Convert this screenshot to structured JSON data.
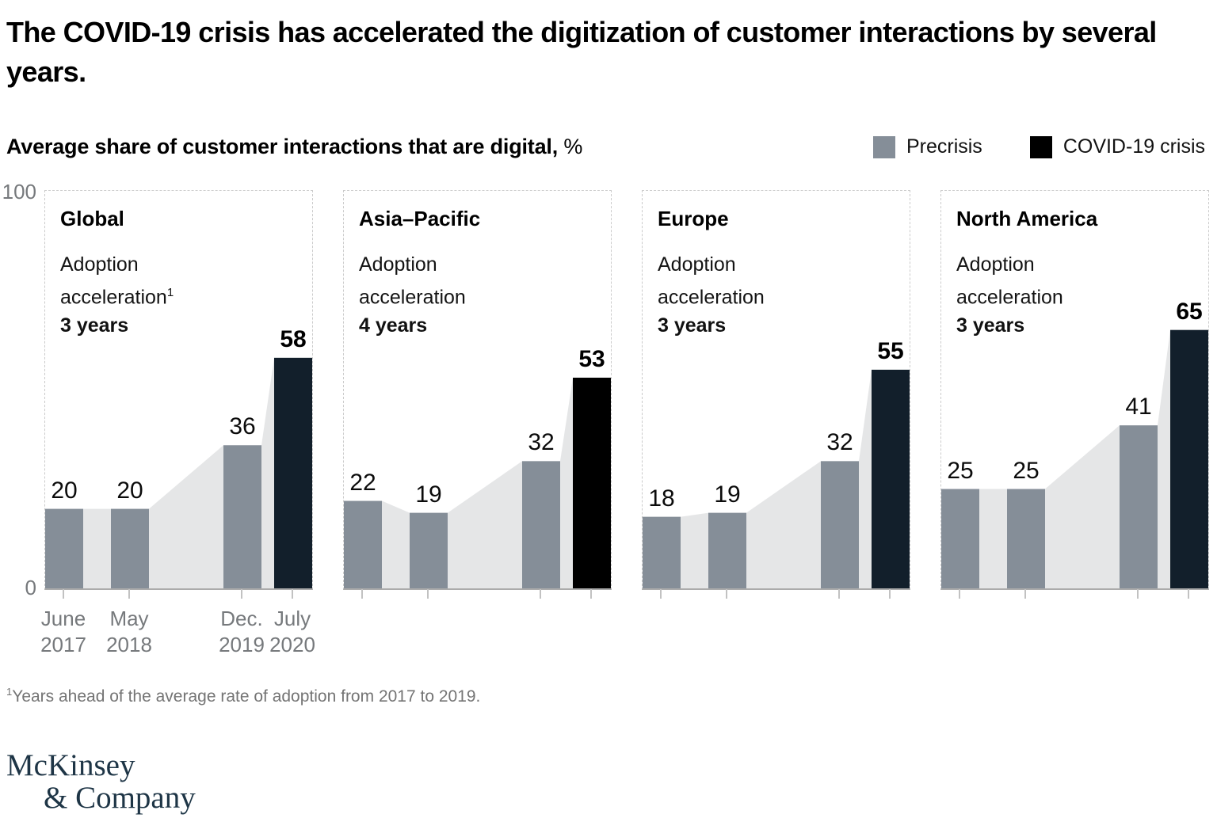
{
  "header": {
    "title": "The COVID-19 crisis has accelerated the digitization of customer interactions by several years.",
    "subtitle_bold": "Average share of customer interactions that are digital,",
    "subtitle_unit": "%"
  },
  "legend": {
    "items": [
      {
        "label": "Precrisis",
        "color": "#858E98"
      },
      {
        "label": "COVID-19 crisis",
        "color": "#000000"
      }
    ]
  },
  "chart_data": {
    "type": "bar",
    "title": "Average share of customer interactions that are digital, %",
    "ylim": [
      0,
      100
    ],
    "y_axis_labels": [
      "100",
      "0"
    ],
    "grid": "off",
    "legend_position": "top-right",
    "series_legend": [
      "Precrisis",
      "COVID-19 crisis"
    ],
    "x_categories": [
      "June 2017",
      "May 2018",
      "Dec. 2019",
      "July 2020"
    ],
    "x_tick_lines": [
      [
        "June",
        "2017"
      ],
      [
        "May",
        "2018"
      ],
      [
        "Dec.",
        "2019"
      ],
      [
        "July",
        "2020"
      ]
    ],
    "precrisis_color": "#858E98",
    "area_color": "#E5E6E7",
    "panels": [
      {
        "region": "Global",
        "note_line1": "Adoption",
        "note_line2": "acceleration",
        "note_sup": "1",
        "acceleration": "3 years",
        "values": [
          20,
          20,
          36,
          58
        ],
        "covid_bar_color": "#121F2B"
      },
      {
        "region": "Asia–Pacific",
        "note_line1": "Adoption",
        "note_line2": "acceleration",
        "note_sup": "",
        "acceleration": "4 years",
        "values": [
          22,
          19,
          32,
          53
        ],
        "covid_bar_color": "#000000"
      },
      {
        "region": "Europe",
        "note_line1": "Adoption",
        "note_line2": "acceleration",
        "note_sup": "",
        "acceleration": "3 years",
        "values": [
          18,
          19,
          32,
          55
        ],
        "covid_bar_color": "#121F2B"
      },
      {
        "region": "North America",
        "note_line1": "Adoption",
        "note_line2": "acceleration",
        "note_sup": "",
        "acceleration": "3 years",
        "values": [
          25,
          25,
          41,
          65
        ],
        "covid_bar_color": "#121F2B"
      }
    ]
  },
  "footnote": {
    "marker": "1",
    "text": "Years ahead of the average rate of adoption from 2017 to 2019."
  },
  "logo": {
    "line1": "McKinsey",
    "line2": "& Company"
  }
}
